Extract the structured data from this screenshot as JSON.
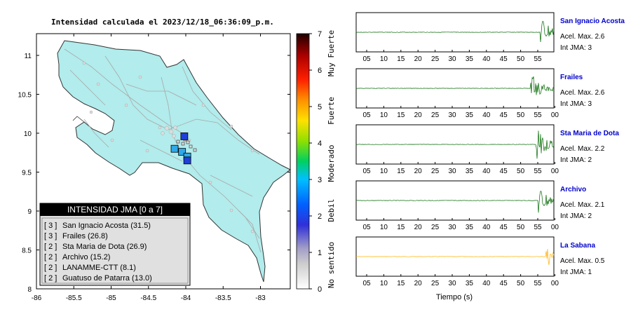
{
  "map": {
    "title": "Intensidad calculada el 2023/12/18_06:36:09_p.m.",
    "x_ticks": [
      "-86",
      "-85.5",
      "-85",
      "-84.5",
      "-84",
      "-83.5",
      "-83"
    ],
    "y_ticks": [
      "11",
      "10.5",
      "10",
      "9.5",
      "9",
      "8.5",
      "8"
    ],
    "colors": {
      "land": "#b2ecec",
      "land_border": "#333333",
      "roads": "#aaaaaa",
      "panel_bg": "#e0e0e0",
      "panel_header": "#000000"
    },
    "markers": [
      {
        "lon": -84.02,
        "lat": 9.96,
        "intensity": 3,
        "color": "#1f3fd6"
      },
      {
        "lon": -84.15,
        "lat": 9.8,
        "intensity": 2,
        "color": "#2ea9ea"
      },
      {
        "lon": -84.05,
        "lat": 9.76,
        "intensity": 2,
        "color": "#2ea9ea"
      },
      {
        "lon": -83.98,
        "lat": 9.7,
        "intensity": 2,
        "color": "#2ea9ea"
      },
      {
        "lon": -83.98,
        "lat": 9.65,
        "intensity": 3,
        "color": "#1f3fd6"
      }
    ]
  },
  "legend_panel": {
    "title": "INTENSIDAD JMA [0 a 7]",
    "items": [
      {
        "int": "[ 3 ]",
        "name": "San Ignacio Acosta (31.5)"
      },
      {
        "int": "[ 3 ]",
        "name": "Frailes (26.8)"
      },
      {
        "int": "[ 2 ]",
        "name": "Sta Maria de Dota (26.9)"
      },
      {
        "int": "[ 2 ]",
        "name": "Archivo (15.2)"
      },
      {
        "int": "[ 2 ]",
        "name": "LANAMME-CTT (8.1)"
      },
      {
        "int": "[ 2 ]",
        "name": "Guatuso de Patarra (13.0)"
      }
    ]
  },
  "colorbar": {
    "ticks": [
      "7",
      "6",
      "5",
      "4",
      "3",
      "2",
      "1",
      "0"
    ],
    "labels": [
      "Muy Fuerte",
      "Fuerte",
      "Moderado",
      "Debil",
      "No sentido"
    ]
  },
  "chart_data": {
    "type": "line",
    "xlabel": "Tiempo (s)",
    "traces": [
      {
        "station": "San Ignacio Acosta",
        "accel": "Acel. Max. 2.6",
        "jma": "Int JMA: 3",
        "ticks": [
          "05",
          "10",
          "15",
          "20",
          "25",
          "30",
          "35",
          "40",
          "45",
          "50",
          "55"
        ],
        "color": "#006600",
        "onset": 0.93
      },
      {
        "station": "Frailes",
        "accel": "Acel. Max. 2.6",
        "jma": "Int JMA: 3",
        "ticks": [
          "05",
          "10",
          "15",
          "20",
          "25",
          "30",
          "35",
          "40",
          "45",
          "50",
          "55",
          "00"
        ],
        "color": "#006600",
        "onset": 0.88
      },
      {
        "station": "Sta Maria de Dota",
        "accel": "Acel. Max. 2.2",
        "jma": "Int JMA: 2",
        "ticks": [
          "05",
          "10",
          "15",
          "20",
          "25",
          "30",
          "35",
          "40",
          "45",
          "50",
          "55",
          "00"
        ],
        "color": "#006600",
        "onset": 0.91
      },
      {
        "station": "Archivo",
        "accel": "Acel. Max. 2.1",
        "jma": "Int JMA: 2",
        "ticks": [
          "05",
          "10",
          "15",
          "20",
          "25",
          "30",
          "35",
          "40",
          "45",
          "50",
          "55",
          "00"
        ],
        "color": "#006600",
        "onset": 0.92
      },
      {
        "station": "La Sabana",
        "accel": "Acel. Max. 0.5",
        "jma": "Int JMA: 1",
        "ticks": [
          "05",
          "10",
          "15",
          "20",
          "25",
          "30",
          "35",
          "40",
          "45",
          "50",
          "55",
          "00"
        ],
        "color": "#ffb000",
        "onset": 0.96
      }
    ]
  }
}
